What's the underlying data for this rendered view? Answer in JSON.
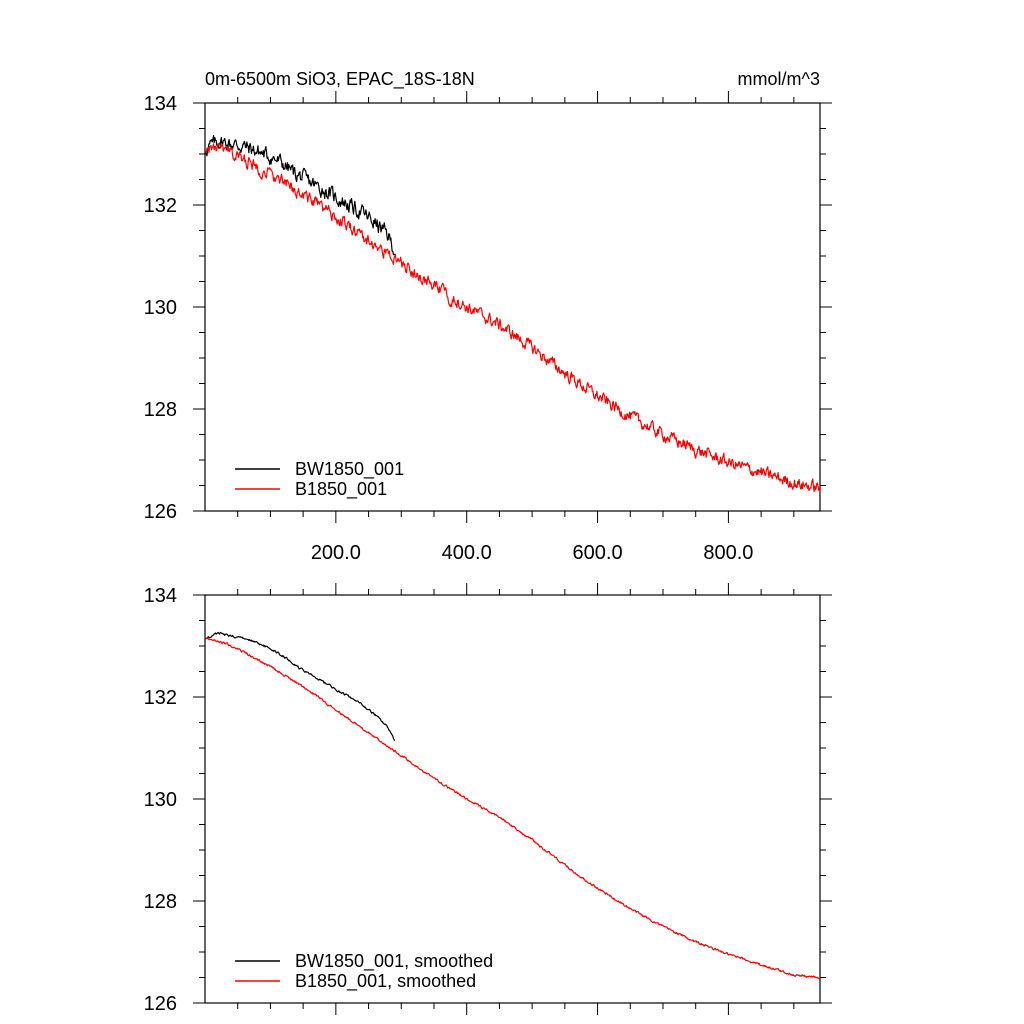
{
  "chart_data": [
    {
      "type": "line",
      "title": "0m-6500m SiO3, EPAC_18S-18N",
      "units": "mmol/m^3",
      "xlim": [
        0,
        940
      ],
      "ylim": [
        126,
        134
      ],
      "xticks": [
        200,
        400,
        600,
        800
      ],
      "xtick_labels": [
        "200.0",
        "400.0",
        "600.0",
        "800.0"
      ],
      "yticks": [
        126,
        128,
        130,
        132,
        134
      ],
      "ytick_labels": [
        "126",
        "128",
        "130",
        "132",
        "134"
      ],
      "legend_position": "bottom-left",
      "series": [
        {
          "name": "BW1850_001",
          "color": "#000000",
          "noise": 0.12,
          "x": [
            1,
            20,
            40,
            60,
            80,
            100,
            120,
            140,
            160,
            180,
            200,
            220,
            240,
            260,
            280,
            290
          ],
          "y": [
            133.1,
            133.25,
            133.2,
            133.15,
            133.05,
            132.95,
            132.8,
            132.6,
            132.45,
            132.3,
            132.15,
            132.0,
            131.85,
            131.65,
            131.4,
            131.1
          ]
        },
        {
          "name": "B1850_001",
          "color": "#ff0000",
          "noise": 0.1,
          "x": [
            1,
            20,
            50,
            100,
            150,
            200,
            250,
            300,
            350,
            400,
            450,
            500,
            550,
            600,
            650,
            700,
            750,
            800,
            850,
            900,
            940
          ],
          "y": [
            133.1,
            133.1,
            132.95,
            132.6,
            132.2,
            131.75,
            131.3,
            130.85,
            130.4,
            130.0,
            129.65,
            129.2,
            128.7,
            128.25,
            127.85,
            127.5,
            127.2,
            126.95,
            126.75,
            126.55,
            126.45
          ]
        }
      ]
    },
    {
      "type": "line",
      "xlim": [
        0,
        940
      ],
      "ylim": [
        126,
        134
      ],
      "yticks": [
        126,
        128,
        130,
        132,
        134
      ],
      "ytick_labels": [
        "126",
        "128",
        "130",
        "132",
        "134"
      ],
      "legend_position": "bottom-left",
      "series": [
        {
          "name": "BW1850_001, smoothed",
          "color": "#000000",
          "noise": 0.02,
          "x": [
            1,
            20,
            40,
            60,
            80,
            100,
            120,
            140,
            160,
            180,
            200,
            220,
            240,
            260,
            280,
            290
          ],
          "y": [
            133.15,
            133.25,
            133.2,
            133.15,
            133.05,
            132.95,
            132.8,
            132.6,
            132.45,
            132.3,
            132.15,
            132.0,
            131.85,
            131.65,
            131.4,
            131.15
          ]
        },
        {
          "name": "B1850_001, smoothed",
          "color": "#ff0000",
          "noise": 0.02,
          "x": [
            1,
            20,
            50,
            100,
            150,
            200,
            250,
            300,
            350,
            400,
            450,
            500,
            550,
            600,
            650,
            700,
            750,
            800,
            850,
            900,
            940
          ],
          "y": [
            133.15,
            133.1,
            132.95,
            132.6,
            132.2,
            131.75,
            131.3,
            130.85,
            130.4,
            130.0,
            129.65,
            129.2,
            128.7,
            128.25,
            127.85,
            127.5,
            127.2,
            126.95,
            126.75,
            126.55,
            126.5
          ]
        }
      ]
    }
  ]
}
